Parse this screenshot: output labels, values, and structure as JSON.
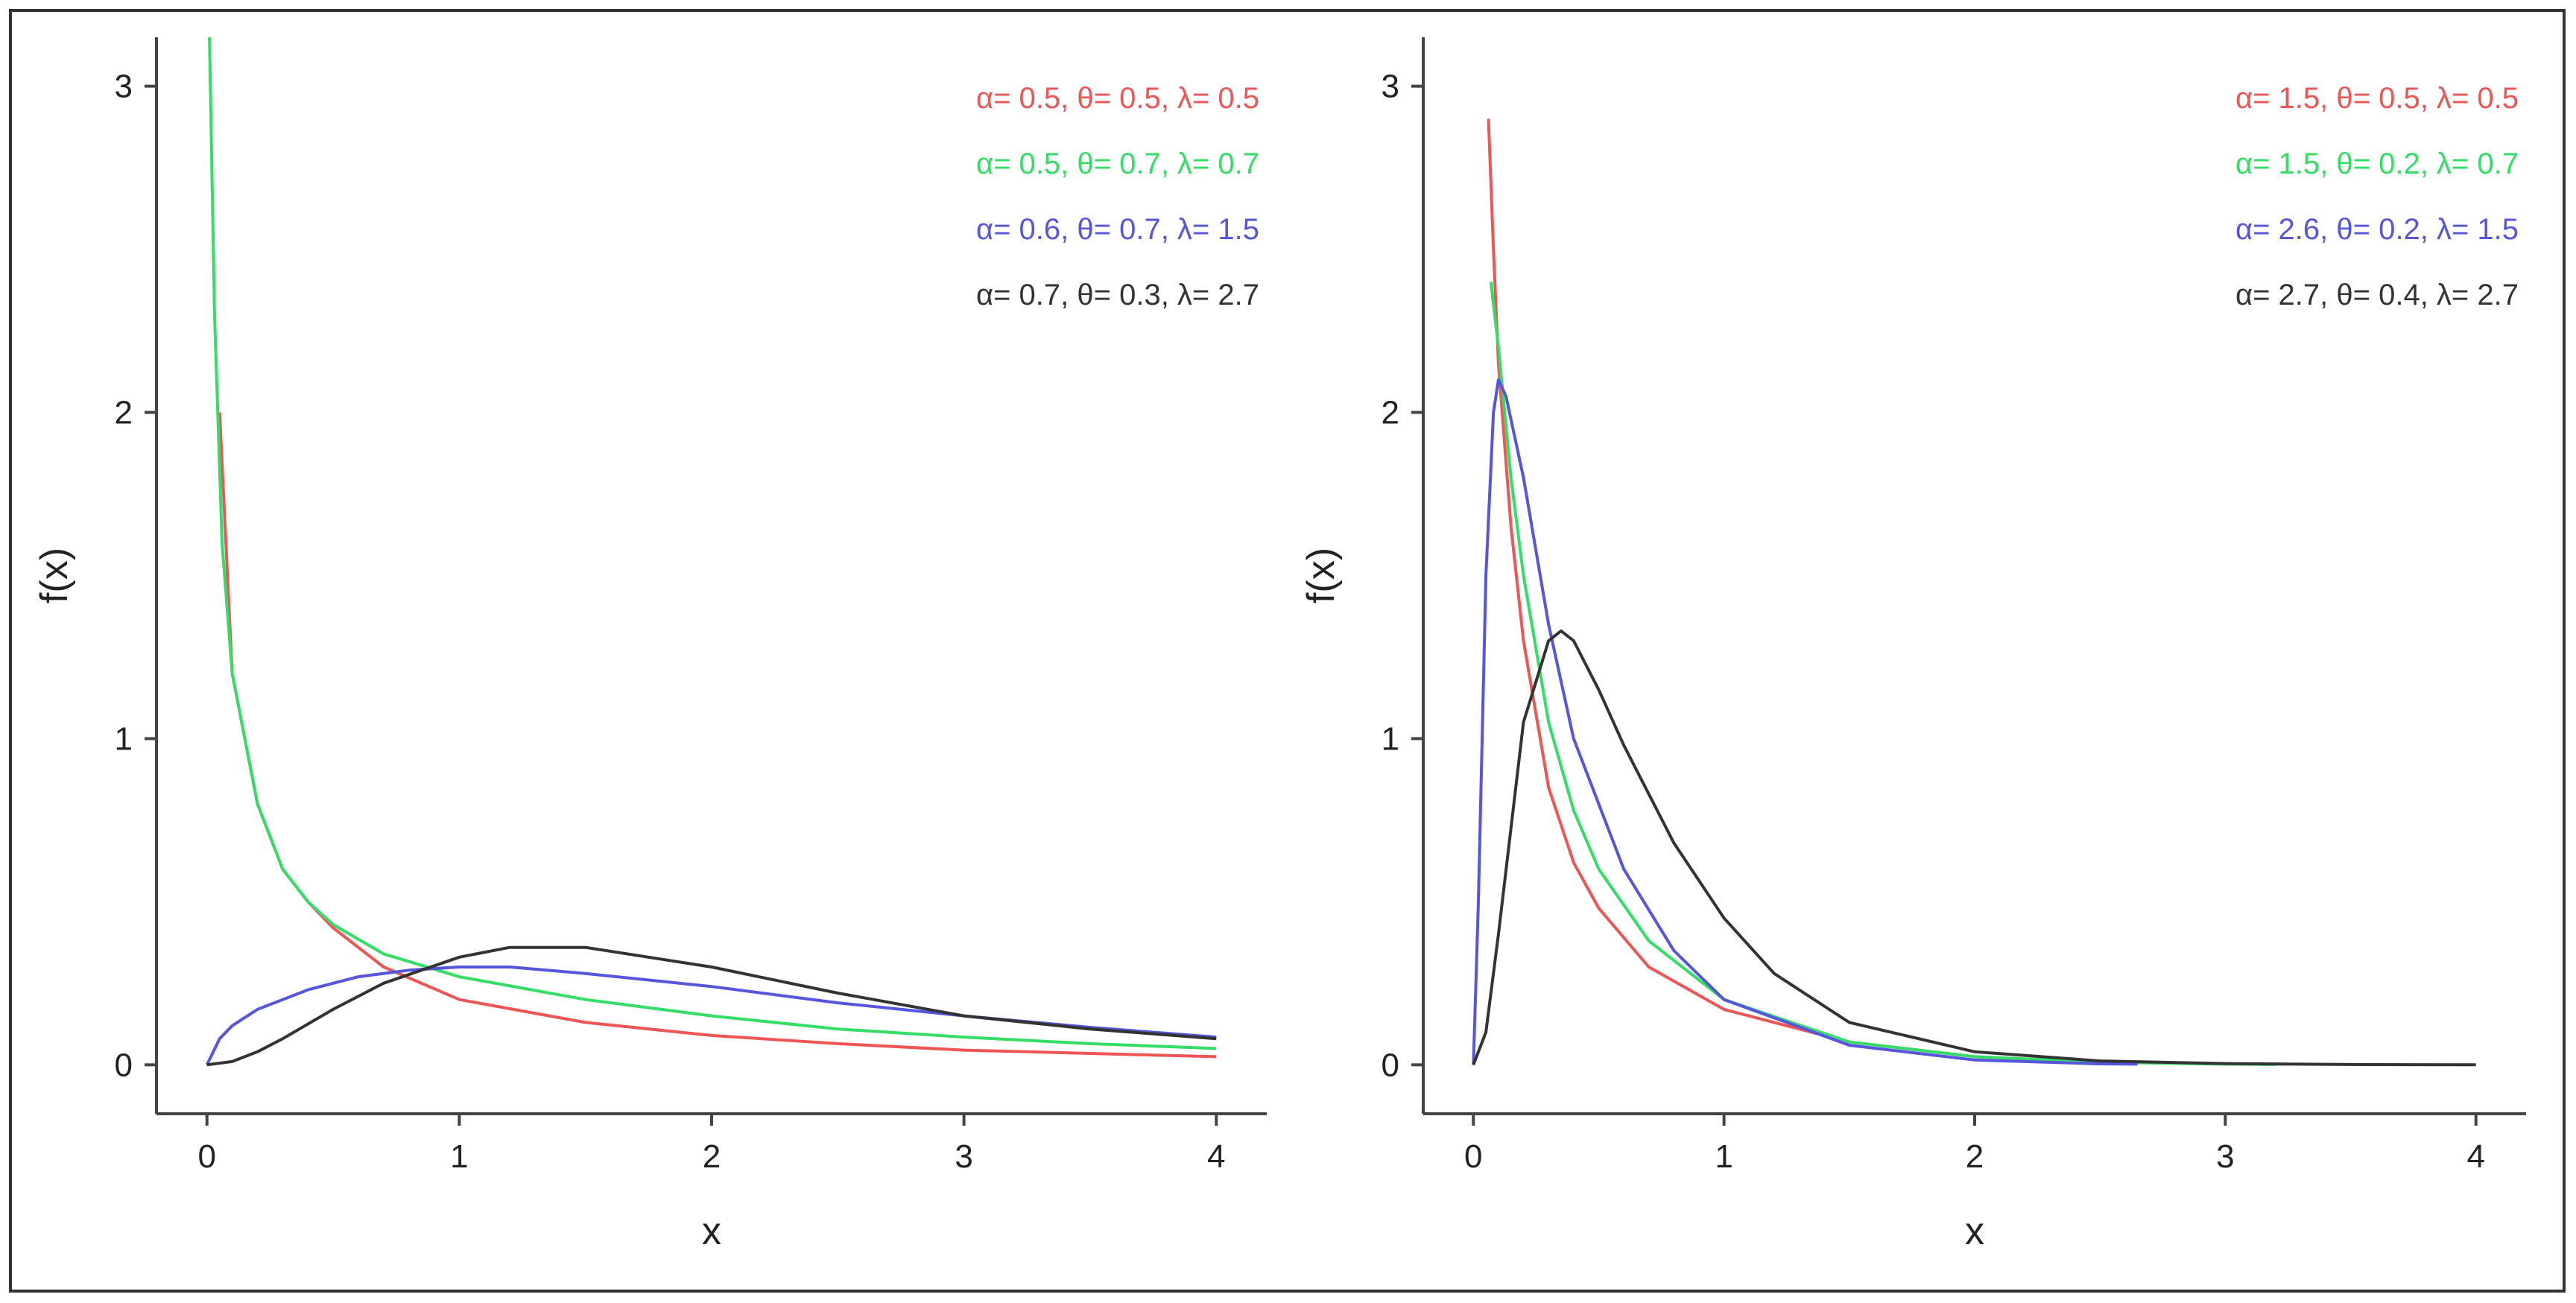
{
  "chart_data": [
    {
      "type": "line",
      "title": "",
      "xlabel": "x",
      "ylabel": "f(x)",
      "xlim": [
        -0.2,
        4.2
      ],
      "ylim": [
        -0.15,
        3.15
      ],
      "xticks": [
        "0",
        "1",
        "2",
        "3",
        "4"
      ],
      "yticks": [
        "0",
        "1",
        "2",
        "3"
      ],
      "grid": false,
      "legend_position": "top-right",
      "series": [
        {
          "name": "α= 0.5, θ= 0.5, λ= 0.5",
          "color": "#ee5555",
          "x": [
            0.05,
            0.1,
            0.2,
            0.3,
            0.4,
            0.5,
            0.7,
            1.0,
            1.5,
            2.0,
            2.5,
            3.0,
            3.5,
            4.0
          ],
          "y": [
            2.0,
            1.2,
            0.8,
            0.6,
            0.5,
            0.42,
            0.3,
            0.2,
            0.13,
            0.09,
            0.065,
            0.045,
            0.035,
            0.025
          ]
        },
        {
          "name": "α= 0.5, θ= 0.7, λ= 0.7",
          "color": "#33dd66",
          "x": [
            0.01,
            0.03,
            0.06,
            0.1,
            0.2,
            0.3,
            0.4,
            0.5,
            0.7,
            1.0,
            1.5,
            2.0,
            2.5,
            3.0,
            3.5,
            4.0
          ],
          "y": [
            3.15,
            2.3,
            1.6,
            1.2,
            0.8,
            0.6,
            0.5,
            0.43,
            0.34,
            0.27,
            0.2,
            0.15,
            0.11,
            0.085,
            0.065,
            0.05
          ]
        },
        {
          "name": "α= 0.6, θ= 0.7, λ= 1.5",
          "color": "#5555dd",
          "x": [
            0.0,
            0.05,
            0.1,
            0.2,
            0.4,
            0.6,
            0.8,
            1.0,
            1.2,
            1.5,
            2.0,
            2.5,
            3.0,
            3.5,
            4.0
          ],
          "y": [
            0.0,
            0.08,
            0.12,
            0.17,
            0.23,
            0.27,
            0.29,
            0.3,
            0.3,
            0.28,
            0.24,
            0.19,
            0.15,
            0.115,
            0.085
          ]
        },
        {
          "name": "α= 0.7, θ= 0.3, λ= 2.7",
          "color": "#333333",
          "x": [
            0.0,
            0.1,
            0.2,
            0.3,
            0.5,
            0.7,
            1.0,
            1.2,
            1.5,
            2.0,
            2.5,
            3.0,
            3.5,
            4.0
          ],
          "y": [
            0.0,
            0.01,
            0.04,
            0.08,
            0.17,
            0.25,
            0.33,
            0.36,
            0.36,
            0.3,
            0.22,
            0.15,
            0.11,
            0.08
          ]
        }
      ]
    },
    {
      "type": "line",
      "title": "",
      "xlabel": "x",
      "ylabel": "f(x)",
      "xlim": [
        -0.2,
        4.2
      ],
      "ylim": [
        -0.15,
        3.15
      ],
      "xticks": [
        "0",
        "1",
        "2",
        "3",
        "4"
      ],
      "yticks": [
        "0",
        "1",
        "2",
        "3"
      ],
      "grid": false,
      "legend_position": "top-right",
      "series": [
        {
          "name": "α= 1.5, θ= 0.5, λ= 0.5",
          "color": "#ee5555",
          "x": [
            0.06,
            0.08,
            0.1,
            0.15,
            0.2,
            0.3,
            0.4,
            0.5,
            0.7,
            1.0,
            1.5,
            2.0,
            2.5,
            3.0,
            3.25
          ],
          "y": [
            2.9,
            2.5,
            2.15,
            1.65,
            1.3,
            0.85,
            0.62,
            0.48,
            0.3,
            0.17,
            0.07,
            0.025,
            0.008,
            0.003,
            0.002
          ]
        },
        {
          "name": "α= 1.5, θ= 0.2, λ= 0.7",
          "color": "#33dd66",
          "x": [
            0.07,
            0.1,
            0.15,
            0.2,
            0.3,
            0.4,
            0.5,
            0.7,
            1.0,
            1.5,
            2.0,
            2.5,
            3.0,
            3.2
          ],
          "y": [
            2.4,
            2.2,
            1.8,
            1.5,
            1.05,
            0.78,
            0.6,
            0.38,
            0.2,
            0.07,
            0.025,
            0.008,
            0.002,
            0.001
          ]
        },
        {
          "name": "α= 2.6, θ= 0.2, λ= 1.5",
          "color": "#5555dd",
          "x": [
            0.0,
            0.02,
            0.05,
            0.08,
            0.1,
            0.13,
            0.2,
            0.3,
            0.4,
            0.6,
            0.8,
            1.0,
            1.5,
            2.0,
            2.5,
            2.65
          ],
          "y": [
            0.0,
            0.5,
            1.5,
            2.0,
            2.1,
            2.05,
            1.8,
            1.35,
            1.0,
            0.6,
            0.35,
            0.2,
            0.06,
            0.015,
            0.003,
            0.002
          ]
        },
        {
          "name": "α= 2.7, θ= 0.4, λ= 2.7",
          "color": "#333333",
          "x": [
            0.0,
            0.05,
            0.1,
            0.2,
            0.3,
            0.35,
            0.4,
            0.5,
            0.6,
            0.8,
            1.0,
            1.2,
            1.5,
            2.0,
            2.5,
            3.0,
            3.5,
            4.0
          ],
          "y": [
            0.0,
            0.1,
            0.4,
            1.05,
            1.3,
            1.33,
            1.3,
            1.15,
            0.98,
            0.68,
            0.45,
            0.28,
            0.13,
            0.04,
            0.012,
            0.004,
            0.001,
            0.0
          ]
        }
      ]
    }
  ]
}
